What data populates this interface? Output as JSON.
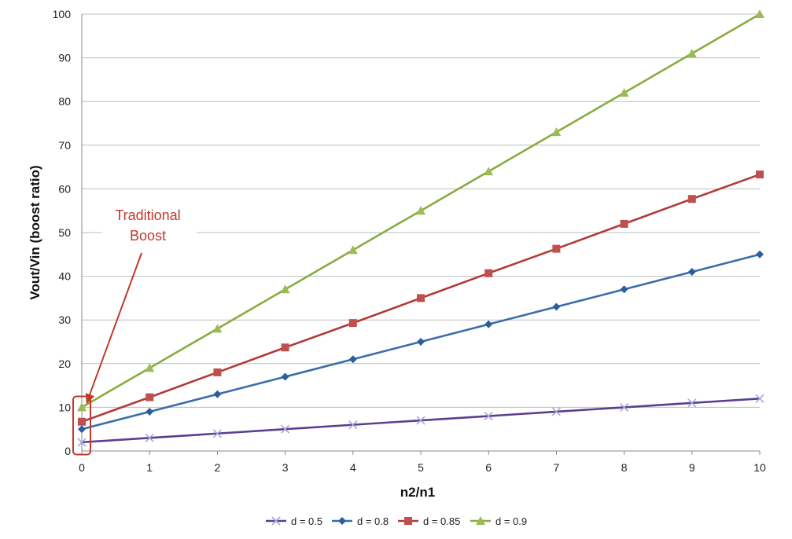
{
  "chart_data": {
    "type": "line",
    "xlabel": "n2/n1",
    "ylabel": "Vout/Vin (boost ratio)",
    "xlim": [
      0,
      10
    ],
    "ylim": [
      0,
      100
    ],
    "x_ticks": [
      0,
      1,
      2,
      3,
      4,
      5,
      6,
      7,
      8,
      9,
      10
    ],
    "y_ticks": [
      0,
      10,
      20,
      30,
      40,
      50,
      60,
      70,
      80,
      90,
      100
    ],
    "grid": "horizontal",
    "legend_position": "bottom",
    "x": [
      0,
      1,
      2,
      3,
      4,
      5,
      6,
      7,
      8,
      9,
      10
    ],
    "series": [
      {
        "name": "d = 0.5",
        "marker": "x",
        "color": "#5b3f8f",
        "marker_color": "#a9a4d8",
        "values": [
          2,
          3,
          4,
          5,
          6,
          7,
          8,
          9,
          10,
          11,
          12
        ]
      },
      {
        "name": "d = 0.8",
        "marker": "diamond",
        "color": "#3a6ea8",
        "marker_color": "#2c5e9c",
        "values": [
          5,
          9,
          13,
          17,
          21,
          25,
          29,
          33,
          37,
          41,
          45
        ]
      },
      {
        "name": "d = 0.85",
        "marker": "square",
        "color": "#b23a3a",
        "marker_color": "#c0504d",
        "values": [
          6.7,
          12.3,
          18,
          23.7,
          29.3,
          35,
          40.7,
          46.3,
          52,
          57.7,
          63.3
        ]
      },
      {
        "name": "d = 0.9",
        "marker": "triangle",
        "color": "#8aab3f",
        "marker_color": "#9bbb59",
        "values": [
          10,
          19,
          28,
          37,
          46,
          55,
          64,
          73,
          82,
          91,
          100
        ]
      }
    ],
    "annotations": [
      {
        "text_lines": [
          "Traditional",
          "Boost"
        ],
        "color": "#c0392b",
        "points_to": {
          "x": 0,
          "y": 10
        }
      }
    ]
  }
}
